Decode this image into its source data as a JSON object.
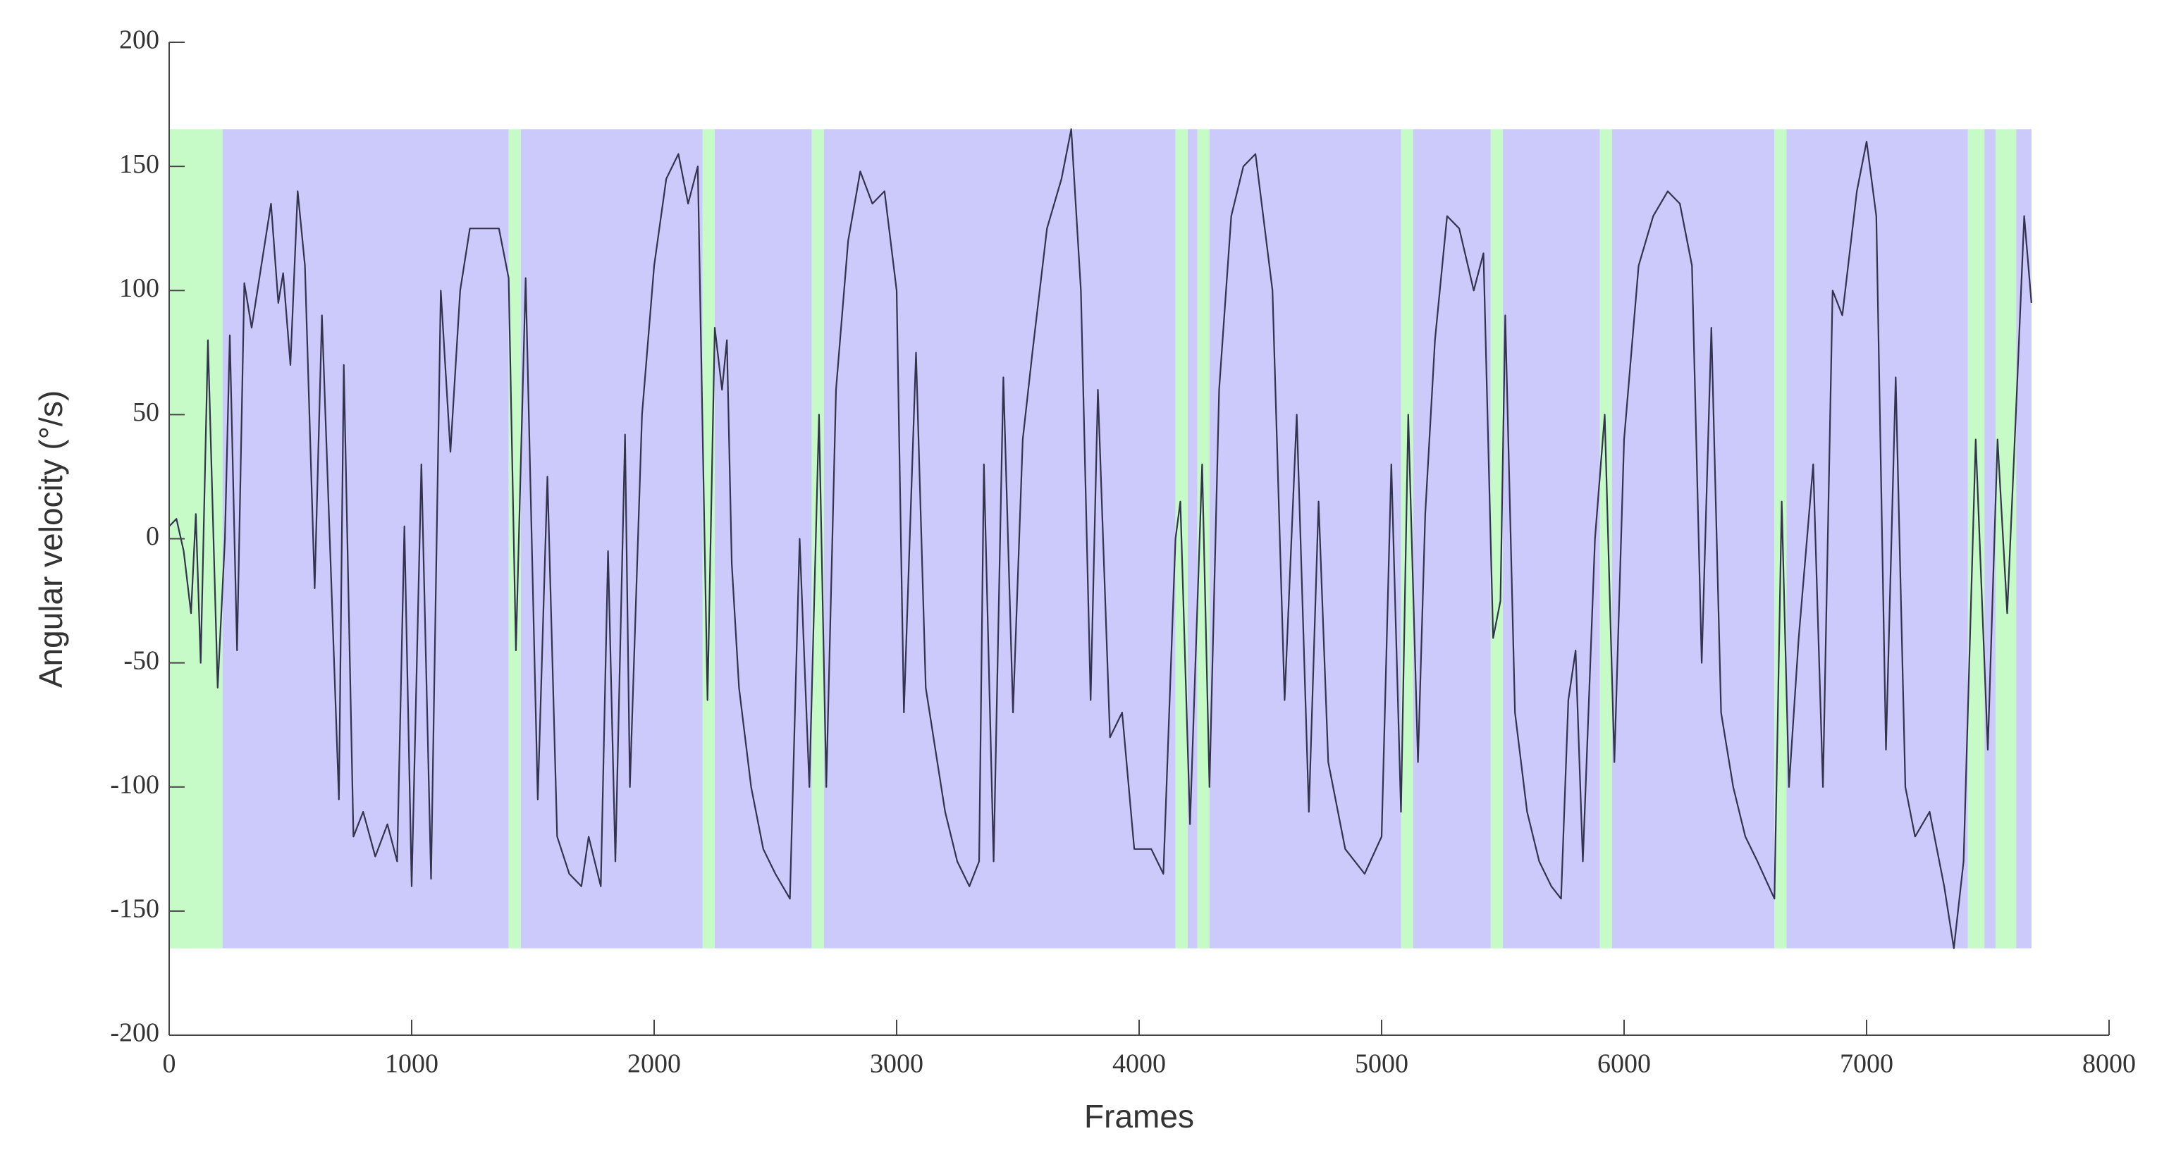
{
  "chart_data": {
    "type": "line",
    "xlabel": "Frames",
    "ylabel": "Angular velocity (°/s)",
    "xlim": [
      0,
      8000
    ],
    "ylim": [
      -200,
      200
    ],
    "xticks": [
      0,
      1000,
      2000,
      3000,
      4000,
      5000,
      6000,
      7000,
      8000
    ],
    "yticks": [
      -200,
      -150,
      -100,
      -50,
      0,
      50,
      100,
      150,
      200
    ],
    "region_ylim": [
      -165,
      165
    ],
    "regions": [
      {
        "x0": 0,
        "x1": 220,
        "color": "#c6fbc8"
      },
      {
        "x0": 220,
        "x1": 1400,
        "color": "#cbcafb"
      },
      {
        "x0": 1400,
        "x1": 1450,
        "color": "#c6fbc8"
      },
      {
        "x0": 1450,
        "x1": 2200,
        "color": "#cbcafb"
      },
      {
        "x0": 2200,
        "x1": 2250,
        "color": "#c6fbc8"
      },
      {
        "x0": 2250,
        "x1": 2650,
        "color": "#cbcafb"
      },
      {
        "x0": 2650,
        "x1": 2700,
        "color": "#c6fbc8"
      },
      {
        "x0": 2700,
        "x1": 4150,
        "color": "#cbcafb"
      },
      {
        "x0": 4150,
        "x1": 4200,
        "color": "#c6fbc8"
      },
      {
        "x0": 4200,
        "x1": 4240,
        "color": "#cbcafb"
      },
      {
        "x0": 4240,
        "x1": 4290,
        "color": "#c6fbc8"
      },
      {
        "x0": 4290,
        "x1": 5080,
        "color": "#cbcafb"
      },
      {
        "x0": 5080,
        "x1": 5130,
        "color": "#c6fbc8"
      },
      {
        "x0": 5130,
        "x1": 5450,
        "color": "#cbcafb"
      },
      {
        "x0": 5450,
        "x1": 5500,
        "color": "#c6fbc8"
      },
      {
        "x0": 5500,
        "x1": 5900,
        "color": "#cbcafb"
      },
      {
        "x0": 5900,
        "x1": 5950,
        "color": "#c6fbc8"
      },
      {
        "x0": 5950,
        "x1": 6620,
        "color": "#cbcafb"
      },
      {
        "x0": 6620,
        "x1": 6670,
        "color": "#c6fbc8"
      },
      {
        "x0": 6670,
        "x1": 7418,
        "color": "#cbcafb"
      },
      {
        "x0": 7418,
        "x1": 7486,
        "color": "#c6fbc8"
      },
      {
        "x0": 7486,
        "x1": 7532,
        "color": "#cbcafb"
      },
      {
        "x0": 7532,
        "x1": 7617,
        "color": "#c6fbc8"
      },
      {
        "x0": 7617,
        "x1": 7680,
        "color": "#cbcafb"
      }
    ],
    "color": "#33334d",
    "x": [
      0,
      30,
      60,
      90,
      110,
      130,
      160,
      200,
      230,
      250,
      280,
      310,
      340,
      380,
      420,
      450,
      470,
      500,
      530,
      560,
      600,
      630,
      700,
      720,
      760,
      800,
      850,
      900,
      940,
      970,
      1000,
      1040,
      1080,
      1120,
      1160,
      1200,
      1240,
      1300,
      1360,
      1400,
      1430,
      1470,
      1520,
      1560,
      1600,
      1650,
      1700,
      1730,
      1780,
      1810,
      1840,
      1880,
      1900,
      1950,
      2000,
      2050,
      2100,
      2140,
      2180,
      2220,
      2250,
      2280,
      2300,
      2320,
      2350,
      2400,
      2450,
      2500,
      2560,
      2600,
      2640,
      2680,
      2710,
      2750,
      2800,
      2850,
      2900,
      2950,
      3000,
      3030,
      3080,
      3120,
      3160,
      3200,
      3250,
      3300,
      3340,
      3360,
      3400,
      3440,
      3480,
      3520,
      3560,
      3620,
      3680,
      3720,
      3760,
      3800,
      3830,
      3880,
      3930,
      3980,
      4050,
      4100,
      4150,
      4170,
      4210,
      4260,
      4290,
      4330,
      4380,
      4430,
      4480,
      4550,
      4600,
      4650,
      4700,
      4740,
      4780,
      4850,
      4930,
      5000,
      5040,
      5080,
      5110,
      5150,
      5180,
      5220,
      5270,
      5320,
      5380,
      5420,
      5460,
      5490,
      5510,
      5550,
      5600,
      5650,
      5700,
      5740,
      5770,
      5800,
      5830,
      5880,
      5920,
      5960,
      6000,
      6060,
      6120,
      6180,
      6230,
      6280,
      6320,
      6360,
      6400,
      6450,
      6500,
      6550,
      6620,
      6650,
      6680,
      6720,
      6780,
      6820,
      6860,
      6900,
      6960,
      7000,
      7040,
      7080,
      7120,
      7160,
      7200,
      7260,
      7320,
      7360,
      7400,
      7450,
      7500,
      7540,
      7580,
      7620,
      7650,
      7680
    ],
    "values": [
      5,
      8,
      -5,
      -30,
      10,
      -50,
      80,
      -60,
      0,
      82,
      -45,
      103,
      85,
      110,
      135,
      95,
      107,
      70,
      140,
      110,
      -20,
      90,
      -105,
      70,
      -120,
      -110,
      -128,
      -115,
      -130,
      5,
      -140,
      30,
      -137,
      100,
      35,
      100,
      125,
      125,
      125,
      105,
      -45,
      105,
      -105,
      25,
      -120,
      -135,
      -140,
      -120,
      -140,
      -5,
      -130,
      42,
      -100,
      50,
      110,
      145,
      155,
      135,
      150,
      -65,
      85,
      60,
      80,
      -10,
      -60,
      -100,
      -125,
      -135,
      -145,
      0,
      -100,
      50,
      -100,
      60,
      120,
      148,
      135,
      140,
      100,
      -70,
      75,
      -60,
      -85,
      -110,
      -130,
      -140,
      -130,
      30,
      -130,
      65,
      -70,
      40,
      75,
      125,
      145,
      165,
      100,
      -65,
      60,
      -80,
      -70,
      -125,
      -125,
      -135,
      0,
      15,
      -115,
      30,
      -100,
      60,
      130,
      150,
      155,
      100,
      -65,
      50,
      -110,
      15,
      -90,
      -125,
      -135,
      -120,
      30,
      -110,
      50,
      -90,
      10,
      80,
      130,
      125,
      100,
      115,
      -40,
      -25,
      90,
      -70,
      -110,
      -130,
      -140,
      -145,
      -65,
      -45,
      -130,
      0,
      50,
      -90,
      40,
      110,
      130,
      140,
      135,
      110,
      -50,
      85,
      -70,
      -100,
      -120,
      -130,
      -145,
      15,
      -100,
      -40,
      30,
      -100,
      100,
      90,
      140,
      160,
      130,
      -85,
      65,
      -100,
      -120,
      -110,
      -140,
      -165,
      -130,
      40,
      -85,
      40,
      -30,
      60,
      130,
      95
    ]
  }
}
